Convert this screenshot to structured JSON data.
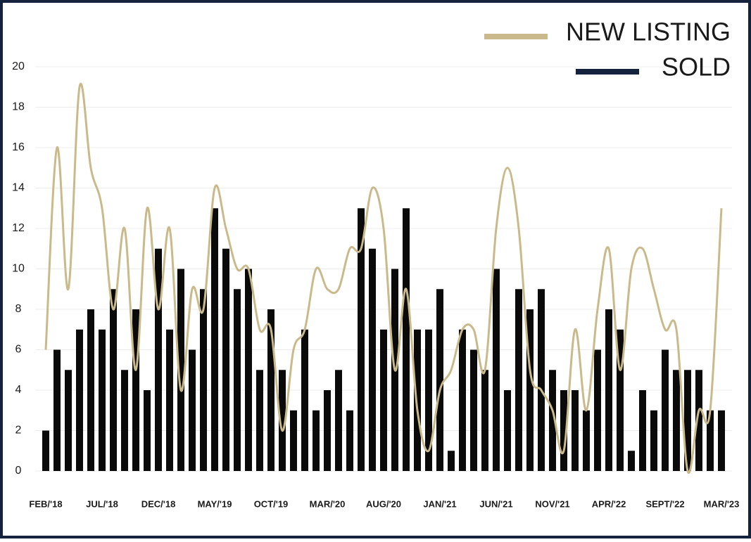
{
  "chart_data": {
    "type": "bar-line",
    "categories": [
      "FEB/'18",
      null,
      null,
      null,
      null,
      "JUL/'18",
      null,
      null,
      null,
      null,
      "DEC/'18",
      null,
      null,
      null,
      null,
      "MAY/'19",
      null,
      null,
      null,
      null,
      "OCT/'19",
      null,
      null,
      null,
      null,
      "MAR/'20",
      null,
      null,
      null,
      null,
      "AUG/'20",
      null,
      null,
      null,
      null,
      "JAN/'21",
      null,
      null,
      null,
      null,
      "JUN/'21",
      null,
      null,
      null,
      null,
      "NOV/'21",
      null,
      null,
      null,
      null,
      "APR/'22",
      null,
      null,
      null,
      null,
      "SEPT/'22",
      null,
      null,
      null,
      null,
      "MAR/'23"
    ],
    "series": [
      {
        "name": "NEW LISTING",
        "type": "line",
        "color": "#c9b98b",
        "values": [
          6,
          16,
          9,
          19,
          15,
          13,
          8,
          12,
          5,
          13,
          8,
          12,
          4,
          9,
          8,
          14,
          12,
          10,
          10,
          7,
          7,
          2,
          6,
          7,
          10,
          9,
          9,
          11,
          11,
          14,
          12,
          5,
          9,
          3,
          1,
          4,
          5,
          7,
          7,
          5,
          12,
          15,
          12,
          5,
          4,
          3,
          1,
          7,
          3,
          8,
          11,
          5,
          10,
          11,
          9,
          7,
          7,
          0,
          3,
          3,
          13
        ]
      },
      {
        "name": "SOLD",
        "type": "bar",
        "color": "#0a0a0a",
        "values": [
          2,
          6,
          5,
          7,
          8,
          7,
          9,
          5,
          8,
          4,
          11,
          7,
          10,
          6,
          9,
          13,
          11,
          9,
          10,
          5,
          8,
          5,
          3,
          7,
          3,
          4,
          5,
          3,
          13,
          11,
          7,
          10,
          13,
          7,
          7,
          9,
          1,
          7,
          6,
          5,
          10,
          4,
          9,
          8,
          9,
          5,
          4,
          4,
          3,
          6,
          8,
          7,
          1,
          4,
          3,
          6,
          5,
          5,
          5,
          3,
          3
        ]
      }
    ],
    "legend_colors": [
      "#c9b98b",
      "#14223d"
    ],
    "ylim": [
      0,
      20
    ],
    "yticks": [
      0,
      2,
      4,
      6,
      8,
      10,
      12,
      14,
      16,
      18,
      20
    ],
    "grid": true,
    "legend": "top-right"
  }
}
